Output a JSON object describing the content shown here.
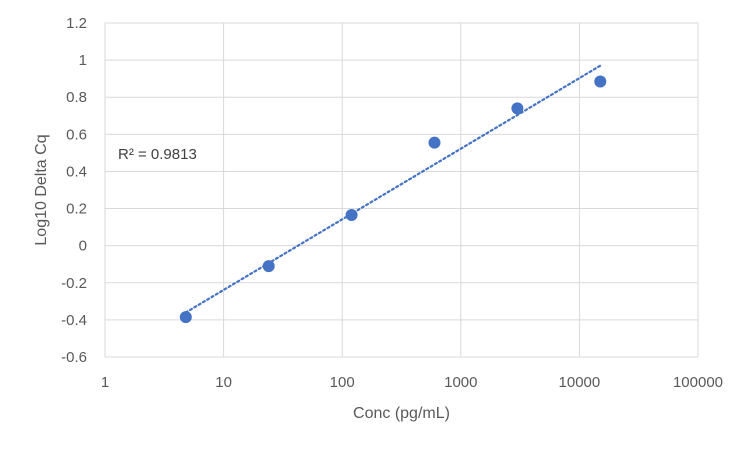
{
  "chart_data": {
    "type": "scatter",
    "title": "",
    "xlabel": "Conc (pg/mL)",
    "ylabel": "Log10 Delta Cq",
    "x_scale": "log",
    "xlim": [
      1,
      100000
    ],
    "ylim": [
      -0.6,
      1.2
    ],
    "x_ticks": [
      "1",
      "10",
      "100",
      "1000",
      "10000",
      "100000"
    ],
    "y_ticks": [
      "1.2",
      "1",
      "0.8",
      "0.6",
      "0.4",
      "0.2",
      "0",
      "-0.2",
      "-0.4",
      "-0.6"
    ],
    "grid": true,
    "series": [
      {
        "points": [
          {
            "x": 4.8,
            "y": -0.385
          },
          {
            "x": 24,
            "y": -0.11
          },
          {
            "x": 120,
            "y": 0.165
          },
          {
            "x": 600,
            "y": 0.555
          },
          {
            "x": 3000,
            "y": 0.74
          },
          {
            "x": 15000,
            "y": 0.885
          }
        ],
        "color": "#4472C4"
      }
    ],
    "trendline": {
      "type": "log",
      "style": "dotted",
      "color": "#4472C4",
      "from": {
        "x": 4.8,
        "y": -0.36
      },
      "to": {
        "x": 15000,
        "y": 0.97
      }
    },
    "annotation": "R² = 0.9813"
  }
}
